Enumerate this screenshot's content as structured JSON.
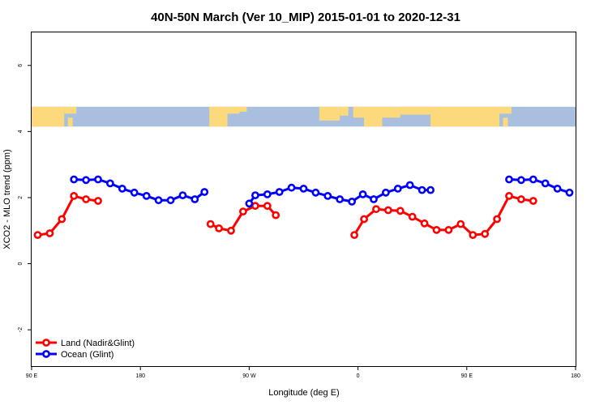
{
  "chart_data": {
    "type": "line",
    "title": "40N-50N March (Ver 10_MIP)   2015-01-01 to 2020-12-31",
    "xlabel": "Longitude (deg E)",
    "ylabel": "XCO2 - MLO trend (ppm)",
    "x_ticks": [
      {
        "value": 90,
        "label": "90 E"
      },
      {
        "value": 180,
        "label": "180"
      },
      {
        "value": 270,
        "label": "90 W"
      },
      {
        "value": 360,
        "label": "0"
      },
      {
        "value": 450,
        "label": "90 E"
      },
      {
        "value": 540,
        "label": "180"
      }
    ],
    "y_ticks": [
      {
        "value": -2,
        "label": "-2"
      },
      {
        "value": 0,
        "label": "0"
      },
      {
        "value": 2,
        "label": "2"
      },
      {
        "value": 4,
        "label": "4"
      },
      {
        "value": 6,
        "label": "6"
      }
    ],
    "xlim": [
      90,
      540
    ],
    "ylim": [
      -3.1,
      7.0
    ],
    "map_strip": {
      "y_min": 4.15,
      "y_max": 4.75,
      "ocean_color": "#a8bfdf",
      "land_color": "#fcd97b"
    },
    "legend_position": "bottom-left",
    "series": [
      {
        "name": "Land (Nadir&Glint)",
        "color": "#ff0000",
        "segments": [
          [
            [
              95,
              0.87
            ],
            [
              105,
              0.92
            ],
            [
              115,
              1.35
            ],
            [
              125,
              2.05
            ],
            [
              135,
              1.95
            ],
            [
              145,
              1.9
            ]
          ],
          [
            [
              238,
              1.2
            ],
            [
              245,
              1.07
            ],
            [
              255,
              1.0
            ],
            [
              265,
              1.58
            ],
            [
              275,
              1.75
            ],
            [
              285,
              1.75
            ],
            [
              292,
              1.47
            ]
          ],
          [
            [
              357,
              0.87
            ],
            [
              365,
              1.35
            ],
            [
              375,
              1.65
            ],
            [
              385,
              1.62
            ],
            [
              395,
              1.6
            ],
            [
              405,
              1.42
            ],
            [
              415,
              1.22
            ],
            [
              425,
              1.02
            ],
            [
              435,
              1.02
            ],
            [
              445,
              1.2
            ],
            [
              455,
              0.87
            ],
            [
              465,
              0.9
            ],
            [
              475,
              1.35
            ],
            [
              485,
              2.05
            ],
            [
              495,
              1.95
            ],
            [
              505,
              1.9
            ]
          ]
        ]
      },
      {
        "name": "Ocean (Glint)",
        "color": "#0000ff",
        "segments": [
          [
            [
              125,
              2.55
            ],
            [
              135,
              2.53
            ],
            [
              145,
              2.55
            ],
            [
              155,
              2.43
            ],
            [
              165,
              2.27
            ],
            [
              175,
              2.15
            ],
            [
              185,
              2.05
            ],
            [
              195,
              1.92
            ],
            [
              205,
              1.92
            ],
            [
              215,
              2.07
            ],
            [
              225,
              1.95
            ],
            [
              233,
              2.17
            ]
          ],
          [
            [
              270,
              1.82
            ],
            [
              275,
              2.07
            ],
            [
              285,
              2.1
            ],
            [
              295,
              2.17
            ],
            [
              305,
              2.3
            ],
            [
              315,
              2.27
            ],
            [
              325,
              2.15
            ],
            [
              335,
              2.05
            ],
            [
              345,
              1.95
            ],
            [
              355,
              1.88
            ],
            [
              364,
              2.1
            ],
            [
              373,
              1.95
            ],
            [
              383,
              2.15
            ],
            [
              393,
              2.27
            ],
            [
              403,
              2.38
            ],
            [
              413,
              2.23
            ],
            [
              420,
              2.23
            ]
          ]
        ],
        "extra_segments": [
          [
            [
              485,
              2.55
            ],
            [
              495,
              2.53
            ],
            [
              505,
              2.55
            ],
            [
              515,
              2.43
            ],
            [
              525,
              2.27
            ],
            [
              535,
              2.15
            ]
          ]
        ]
      }
    ]
  }
}
